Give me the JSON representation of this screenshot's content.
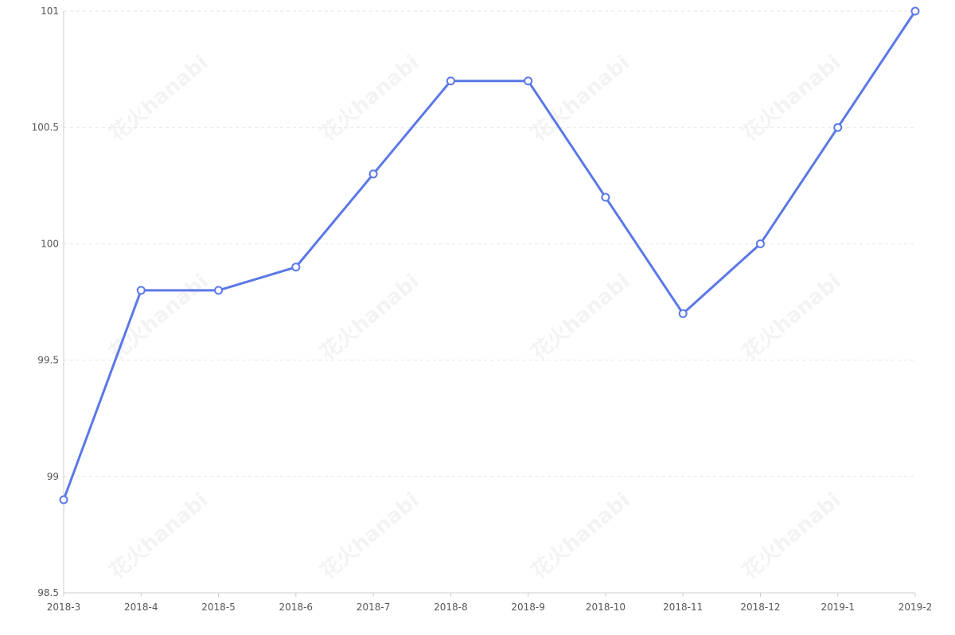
{
  "chart_data": {
    "type": "line",
    "title": "",
    "xlabel": "",
    "ylabel": "",
    "categories": [
      "2018-3",
      "2018-4",
      "2018-5",
      "2018-6",
      "2018-7",
      "2018-8",
      "2018-9",
      "2018-10",
      "2018-11",
      "2018-12",
      "2019-1",
      "2019-2"
    ],
    "series": [
      {
        "values": [
          98.9,
          99.8,
          99.8,
          99.9,
          100.3,
          100.7,
          100.7,
          100.2,
          99.7,
          100.0,
          100.5,
          101.0
        ]
      }
    ],
    "ylim": [
      98.5,
      101
    ],
    "yticks": [
      "98.5",
      "99",
      "99.5",
      "100",
      "100.5",
      "101"
    ],
    "grid": true,
    "legend": "none",
    "colors": {
      "line": "#5b78e8",
      "marker_fill": "#ffffff",
      "grid": "#e6e6e6",
      "axis": "#cccccc",
      "tick_text": "#555555"
    }
  },
  "watermark": {
    "text": "花火hanabi"
  }
}
